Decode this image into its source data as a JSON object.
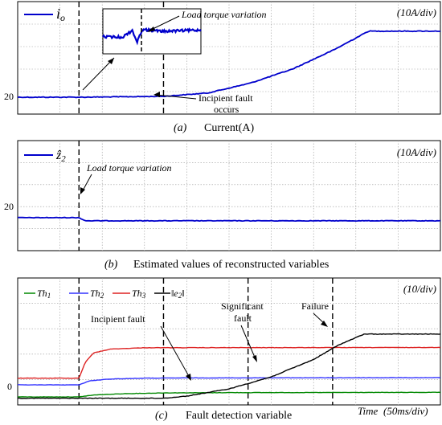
{
  "colors": {
    "current": "#0000cc",
    "th1": "#008800",
    "th2": "#3333ff",
    "th3": "#dd2222",
    "e2": "#000000",
    "grid": "#9a9a9a"
  },
  "chart_data": [
    {
      "type": "line",
      "panel": "a",
      "caption_letter": "(a)",
      "caption": "Current(A)",
      "scale_label": "(10A/div)",
      "xlabel": "",
      "ylabel": "",
      "grid": true,
      "xlim": [
        0,
        10
      ],
      "ylim": [
        15,
        55
      ],
      "ytick_labels": [
        {
          "value": 20,
          "label": "20"
        }
      ],
      "vlines": [
        1.45,
        3.45
      ],
      "series": [
        {
          "name": "i",
          "name_sub": "o",
          "color": "#0000cc",
          "x": [
            0,
            1.45,
            3.45,
            4.5,
            5.5,
            6.5,
            7.5,
            8.3,
            10
          ],
          "y": [
            21,
            21,
            21.3,
            22.5,
            26,
            31,
            38,
            44.5,
            44.5
          ]
        }
      ],
      "annotations": [
        {
          "text": "Load torque variation",
          "italic": true
        },
        {
          "text": "Incipient fault",
          "italic": false
        },
        {
          "text": "occurs",
          "italic": false
        }
      ],
      "inset": {
        "x": [
          0,
          0.8,
          1.2,
          1.4,
          1.6,
          2.4,
          4
        ],
        "y": [
          0.62,
          0.63,
          0.48,
          0.74,
          0.46,
          0.5,
          0.47
        ]
      }
    },
    {
      "type": "line",
      "panel": "b",
      "caption_letter": "(b)",
      "caption": "Estimated values of reconstructed variables",
      "scale_label": "(10A/div)",
      "xlabel": "",
      "ylabel": "",
      "grid": true,
      "xlim": [
        0,
        10
      ],
      "ylim": [
        12,
        47
      ],
      "ytick_labels": [
        {
          "value": 20,
          "label": "20"
        }
      ],
      "vlines": [
        1.45
      ],
      "series": [
        {
          "name": "ẑ",
          "name_sub": "2",
          "color": "#0000cc",
          "x": [
            0,
            1.45,
            1.6,
            10
          ],
          "y": [
            22.5,
            22.5,
            21.5,
            21.5
          ]
        }
      ],
      "annotations": [
        {
          "text": "Load torque variation",
          "italic": true
        }
      ]
    },
    {
      "type": "line",
      "panel": "c",
      "caption_letter": "(c)",
      "caption": "Fault detection variable",
      "scale_label": "(10/div)",
      "xlabel": "Time",
      "xunit": "(50ms/div)",
      "ylabel": "",
      "grid": true,
      "xlim": [
        0,
        10
      ],
      "ylim": [
        -2.5,
        45
      ],
      "ytick_labels": [
        {
          "value": 0,
          "label": "0"
        }
      ],
      "vlines": [
        1.45,
        3.45,
        5.45,
        7.45
      ],
      "series": [
        {
          "name": "Th",
          "name_sub": "1",
          "color": "#008800",
          "x": [
            0,
            1.45,
            1.8,
            2.5,
            3.5,
            5,
            10
          ],
          "y": [
            0.5,
            0.5,
            1.2,
            1.7,
            2,
            2.1,
            2.2
          ]
        },
        {
          "name": "Th",
          "name_sub": "2",
          "color": "#3333ff",
          "x": [
            0,
            1.45,
            1.7,
            2.2,
            3,
            4,
            10
          ],
          "y": [
            5,
            5,
            6.5,
            7.2,
            7.5,
            7.6,
            7.7
          ]
        },
        {
          "name": "Th",
          "name_sub": "3",
          "color": "#dd2222",
          "x": [
            0,
            1.45,
            1.6,
            1.8,
            2.2,
            3,
            10
          ],
          "y": [
            7.5,
            7.5,
            13.5,
            17,
            18.4,
            18.9,
            19
          ]
        },
        {
          "name": "‖e",
          "name_sub": "2",
          "name_tail": "‖",
          "color": "#000000",
          "x": [
            0,
            3.45,
            4,
            5,
            6,
            7,
            7.6,
            8.2,
            10
          ],
          "y": [
            0,
            0,
            0.8,
            3.5,
            8,
            14.5,
            20,
            24,
            24
          ]
        }
      ],
      "annotations": [
        {
          "text": "Incipient fault"
        },
        {
          "text": "Significant"
        },
        {
          "text": "fault"
        },
        {
          "text": "Failure"
        }
      ]
    }
  ]
}
